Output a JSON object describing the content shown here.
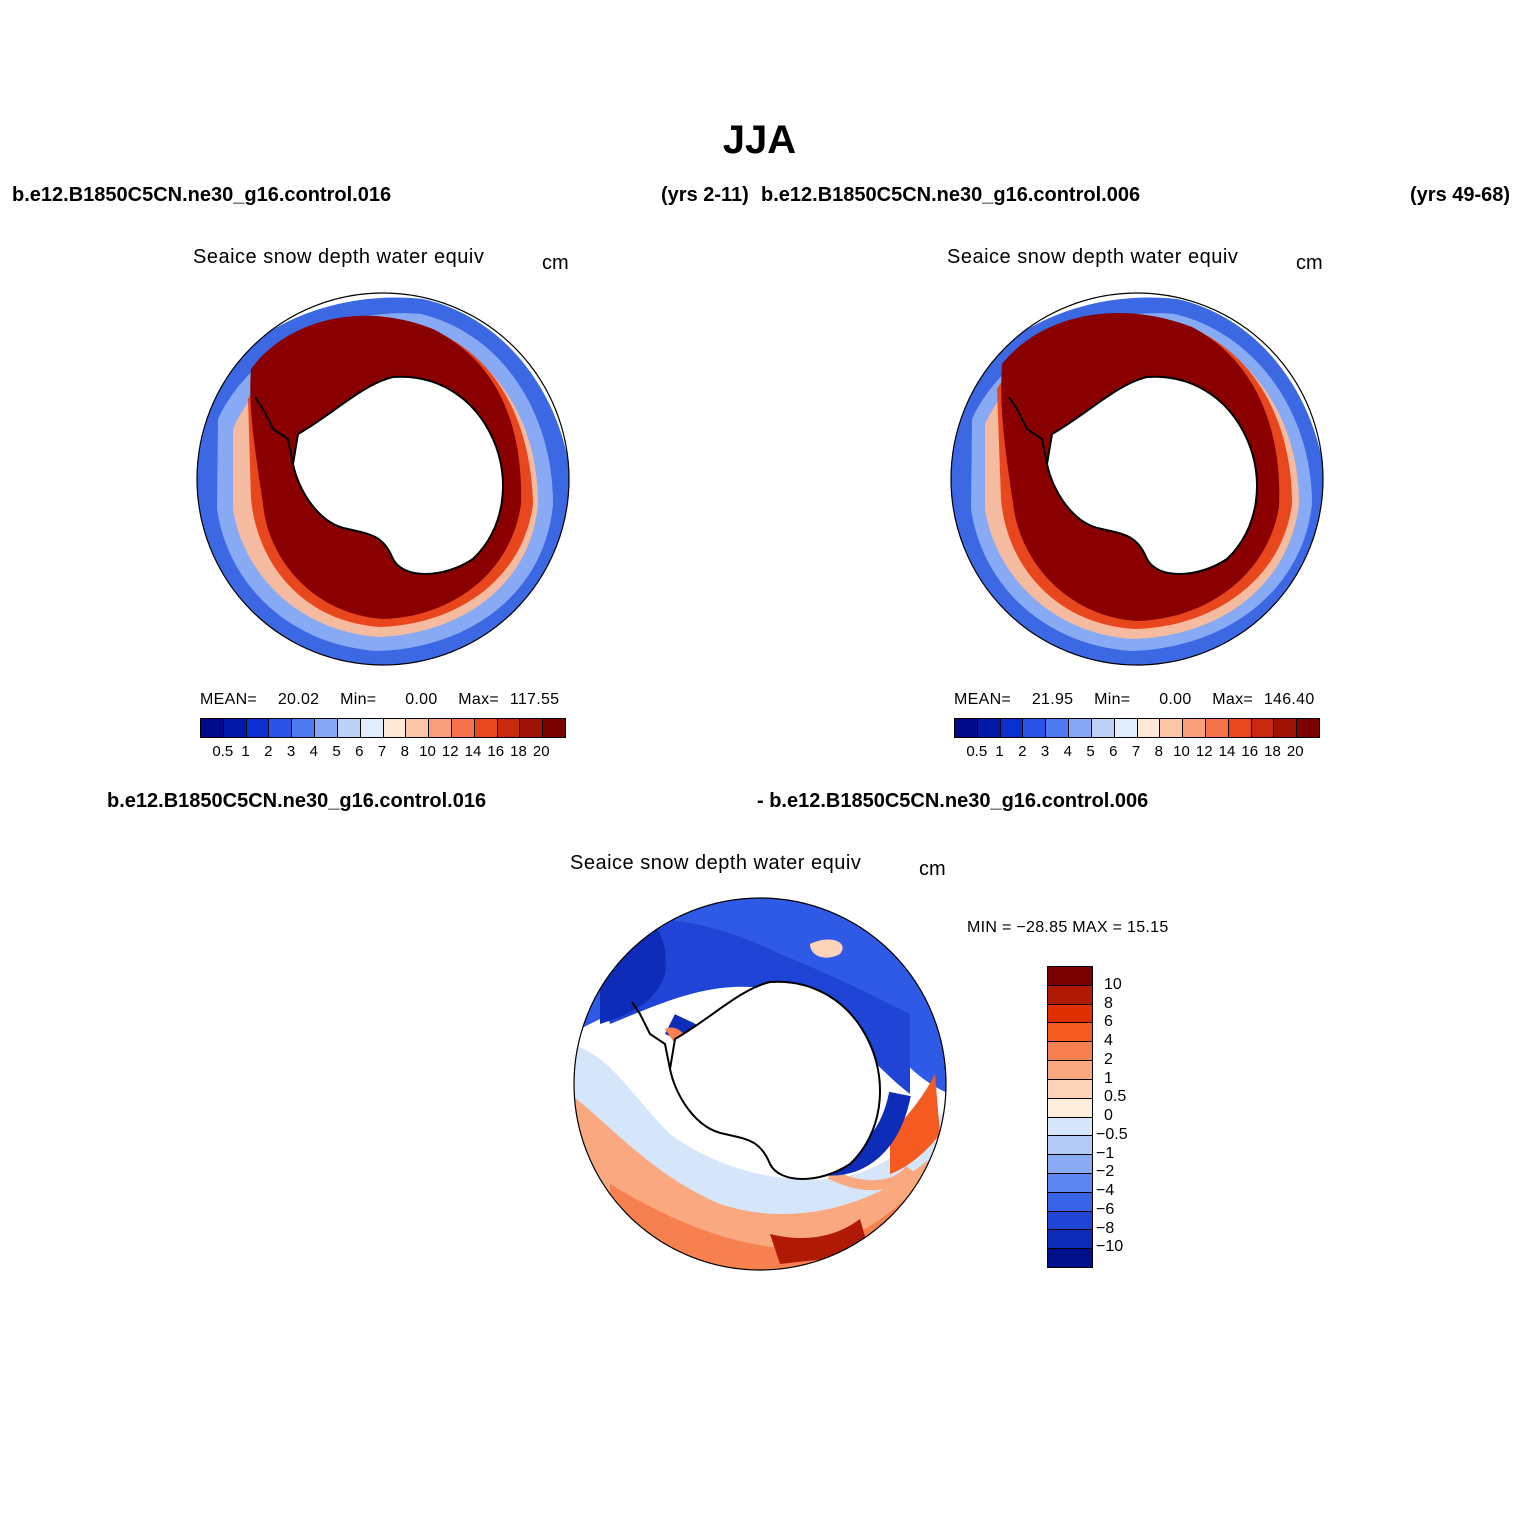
{
  "main_title": "JJA",
  "top_header": {
    "left_case": "b.e12.B1850C5CN.ne30_g16.control.016",
    "left_years": "(yrs 2-11)",
    "right_case": "b.e12.B1850C5CN.ne30_g16.control.006",
    "right_years": "(yrs 49-68)"
  },
  "diff_header": {
    "left": "b.e12.B1850C5CN.ne30_g16.control.016",
    "right": "- b.e12.B1850C5CN.ne30_g16.control.006"
  },
  "panels": [
    {
      "title": "Seaice snow depth water equiv",
      "units": "cm",
      "mean_label": "MEAN=",
      "mean_value": "20.02",
      "min_label": "Min=",
      "min_value": "0.00",
      "max_label": "Max=",
      "max_value": "117.55"
    },
    {
      "title": "Seaice snow depth water equiv",
      "units": "cm",
      "mean_label": "MEAN=",
      "mean_value": "21.95",
      "min_label": "Min=",
      "min_value": "0.00",
      "max_label": "Max=",
      "max_value": "146.40"
    },
    {
      "title": "Seaice snow depth water equiv",
      "units": "cm",
      "minmax": "MIN = −28.85 MAX =   15.15"
    }
  ],
  "abs_colorbar": {
    "colors": [
      "#000b8c",
      "#0019a8",
      "#0a2fd0",
      "#2a52e8",
      "#4f7af2",
      "#86a7f5",
      "#bcd1f8",
      "#e2edfb",
      "#fde8d8",
      "#fcc6a8",
      "#f99f79",
      "#f5734a",
      "#e8471e",
      "#c92a0d",
      "#9e1208",
      "#7a0000"
    ],
    "ticks": [
      "0.5",
      "1",
      "2",
      "3",
      "4",
      "5",
      "6",
      "7",
      "8",
      "10",
      "12",
      "14",
      "16",
      "18",
      "20"
    ]
  },
  "diff_colorbar": {
    "colors": [
      "#7a0000",
      "#b01a05",
      "#e03000",
      "#f55a20",
      "#f78050",
      "#f9a880",
      "#fcd2b8",
      "#fdeede",
      "#d6e6fa",
      "#b3ccf7",
      "#8aabf4",
      "#5e86f0",
      "#3a62e6",
      "#1f44d6",
      "#0d2cb8",
      "#00108a"
    ],
    "ticks": [
      "10",
      "8",
      "6",
      "4",
      "2",
      "1",
      "0.5",
      "0",
      "−0.5",
      "−1",
      "−2",
      "−4",
      "−6",
      "−8",
      "−10"
    ]
  }
}
